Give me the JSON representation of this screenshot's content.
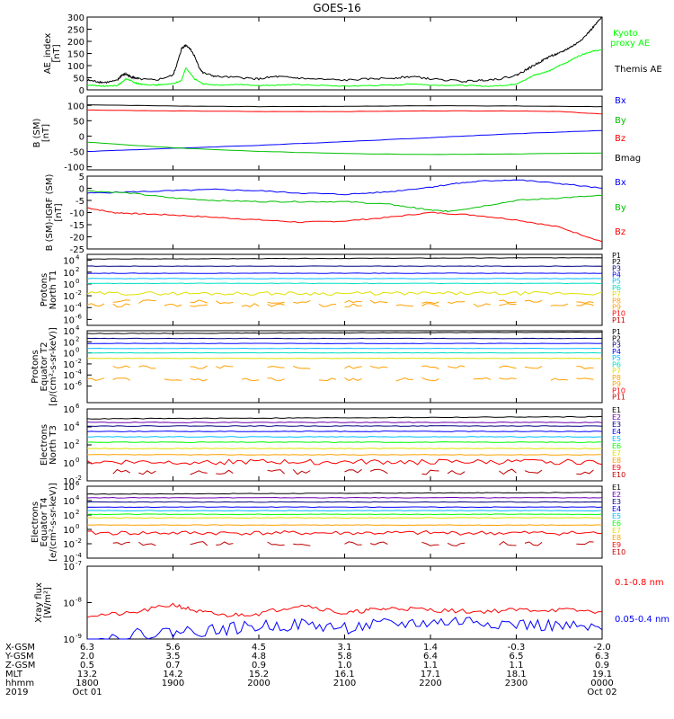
{
  "title": "GOES-16",
  "colors": {
    "black": "#000000",
    "green": "#00c000",
    "lime": "#00ff00",
    "blue": "#0000ff",
    "red": "#ff0000",
    "darkred": "#c00000",
    "navy": "#000080",
    "purple": "#6a00b0",
    "cyan": "#00c0ff",
    "teal": "#00e0c0",
    "yellow": "#e0e000",
    "orange": "#ffa000"
  },
  "chart_data": [
    {
      "type": "line",
      "ylabel": "AE_index [nT]",
      "ylim": [
        0,
        300
      ],
      "yticks": [
        "0",
        "50",
        "100",
        "150",
        "200",
        "250",
        "300"
      ],
      "series": [
        {
          "name": "Kyoto proxy AE",
          "color": "lime",
          "x": [
            0,
            0.1,
            0.2,
            0.35,
            0.4,
            0.45,
            0.5,
            0.55,
            0.6,
            0.65,
            0.8,
            0.85,
            1.0,
            1.1,
            1.15,
            1.25,
            1.35,
            1.5,
            1.8,
            2.0,
            2.2,
            2.4,
            2.6,
            3.0,
            3.3,
            3.6,
            3.8,
            4.0,
            4.4,
            4.7,
            4.9,
            5.0,
            5.1,
            5.2,
            5.3,
            5.4,
            5.5,
            5.6,
            5.7,
            5.8,
            5.9,
            6.0
          ],
          "values": [
            20,
            18,
            15,
            18,
            30,
            45,
            40,
            30,
            25,
            22,
            20,
            22,
            25,
            40,
            90,
            45,
            25,
            20,
            22,
            18,
            20,
            22,
            20,
            15,
            18,
            20,
            25,
            20,
            18,
            15,
            20,
            25,
            40,
            60,
            70,
            80,
            100,
            115,
            135,
            150,
            160,
            165
          ]
        },
        {
          "name": "Themis AE",
          "color": "black",
          "x": [
            0,
            0.1,
            0.2,
            0.35,
            0.4,
            0.45,
            0.5,
            0.55,
            0.6,
            0.8,
            1.0,
            1.05,
            1.1,
            1.15,
            1.2,
            1.25,
            1.3,
            1.35,
            1.5,
            1.8,
            2.0,
            2.2,
            2.4,
            2.6,
            3.0,
            3.3,
            3.6,
            3.8,
            4.0,
            4.4,
            4.6,
            4.8,
            5.0,
            5.1,
            5.2,
            5.3,
            5.4,
            5.5,
            5.6,
            5.7,
            5.8,
            5.9,
            6.0
          ],
          "values": [
            40,
            35,
            30,
            38,
            60,
            65,
            55,
            50,
            45,
            40,
            60,
            110,
            170,
            185,
            170,
            140,
            95,
            70,
            55,
            50,
            45,
            55,
            50,
            45,
            40,
            45,
            50,
            55,
            45,
            35,
            40,
            45,
            60,
            80,
            100,
            120,
            140,
            150,
            170,
            190,
            220,
            260,
            300
          ]
        }
      ]
    },
    {
      "type": "line",
      "ylabel": "B (SM) [nT]",
      "ylim": [
        -110,
        130
      ],
      "yticks": [
        "-100",
        "-50",
        "0",
        "50",
        "100"
      ],
      "ytick_values": [
        -100,
        -50,
        0,
        50,
        100
      ],
      "series": [
        {
          "name": "Bx",
          "color": "blue",
          "x": [
            0,
            1,
            2,
            3,
            4,
            5,
            6
          ],
          "values": [
            -50,
            -40,
            -30,
            -18,
            -5,
            8,
            18
          ]
        },
        {
          "name": "By",
          "color": "green",
          "x": [
            0,
            1,
            2,
            3,
            4,
            5,
            6
          ],
          "values": [
            -20,
            -38,
            -50,
            -57,
            -60,
            -58,
            -55
          ]
        },
        {
          "name": "Bz",
          "color": "red",
          "x": [
            0,
            1,
            2,
            3,
            4,
            5,
            5.5,
            6
          ],
          "values": [
            85,
            82,
            80,
            80,
            82,
            82,
            80,
            72
          ]
        },
        {
          "name": "Bmag",
          "color": "black",
          "x": [
            0,
            1,
            2,
            3,
            4,
            5,
            6
          ],
          "values": [
            102,
            98,
            96,
            97,
            99,
            98,
            96
          ]
        }
      ]
    },
    {
      "type": "line",
      "ylabel": "B (SM)-IGRF (SM) [nT]",
      "ylim": [
        -25,
        5
      ],
      "yticks": [
        "-25",
        "-20",
        "-15",
        "-10",
        "-5",
        "0",
        "5"
      ],
      "series": [
        {
          "name": "Bx",
          "color": "blue",
          "x": [
            0,
            0.5,
            1,
            1.5,
            2,
            2.5,
            3,
            3.5,
            4,
            4.3,
            4.6,
            5,
            5.5,
            6
          ],
          "values": [
            -2,
            -1.5,
            -1,
            -0.5,
            -1,
            -2,
            -2.5,
            -1.5,
            0.5,
            2,
            3,
            3.5,
            2,
            0
          ]
        },
        {
          "name": "By",
          "color": "green",
          "x": [
            0,
            0.5,
            1,
            1.5,
            2,
            2.5,
            3,
            3.5,
            3.8,
            4,
            4.2,
            4.5,
            5,
            5.5,
            6
          ],
          "values": [
            -1,
            -2,
            -4,
            -5,
            -5.5,
            -5.5,
            -5.5,
            -6.5,
            -8,
            -9,
            -9.5,
            -8,
            -5,
            -4,
            -3
          ]
        },
        {
          "name": "Bz",
          "color": "red",
          "x": [
            0,
            0.3,
            0.6,
            1,
            1.5,
            2,
            2.5,
            3,
            3.5,
            4,
            4.5,
            5,
            5.5,
            6
          ],
          "values": [
            -8,
            -10,
            -10.5,
            -11,
            -12,
            -13,
            -14,
            -13.5,
            -12,
            -10,
            -11,
            -13,
            -16,
            -22
          ]
        }
      ]
    },
    {
      "type": "line",
      "ylabel": "Protons North T1",
      "log": true,
      "ylim_exp": [
        -7,
        5
      ],
      "yticks": [
        "10",
        "10",
        "10",
        "10",
        "10",
        "10"
      ],
      "ytick_exps": [
        "4",
        "2",
        "0",
        "-2",
        "-4",
        "-6"
      ],
      "channels": [
        "P1",
        "P2",
        "P3",
        "P4",
        "P5",
        "P6",
        "P7",
        "P8",
        "P9",
        "P10",
        "P11"
      ],
      "channel_colors": [
        "black",
        "black",
        "navy",
        "blue",
        "cyan",
        "teal",
        "yellow",
        "orange",
        "orange",
        "red",
        "darkred"
      ],
      "levels_exp": [
        4.2,
        3,
        1.8,
        0.9,
        0.1,
        -1.6,
        -3.0,
        -3.6
      ]
    },
    {
      "type": "line",
      "ylabel": "Protons Equator T2 [p/(cm²-s-sr-keV)]",
      "log": true,
      "ylim_exp": [
        -9,
        4
      ],
      "yticks": [
        "10",
        "10",
        "10",
        "10",
        "10",
        "10"
      ],
      "ytick_exps": [
        "4",
        "2",
        "0",
        "-2",
        "-4",
        "-6"
      ],
      "channels": [
        "P1",
        "P2",
        "P3",
        "P4",
        "P5",
        "P6",
        "P7",
        "P8",
        "P9",
        "P10",
        "P11"
      ],
      "channel_colors": [
        "black",
        "black",
        "navy",
        "blue",
        "cyan",
        "teal",
        "yellow",
        "orange",
        "orange",
        "red",
        "darkred"
      ],
      "levels_exp": [
        3.5,
        2.6,
        1.7,
        0.8,
        0,
        -1,
        -2.6,
        -4.8
      ]
    },
    {
      "type": "line",
      "ylabel": "Electrons North T3",
      "log": true,
      "ylim_exp": [
        -2,
        6
      ],
      "yticks": [
        "10",
        "10",
        "10",
        "10",
        "10"
      ],
      "ytick_exps": [
        "6",
        "4",
        "2",
        "0",
        "-2"
      ],
      "channels": [
        "E1",
        "E2",
        "E3",
        "E4",
        "E5",
        "E6",
        "E7",
        "E8",
        "E9",
        "E10"
      ],
      "channel_colors": [
        "black",
        "purple",
        "navy",
        "blue",
        "cyan",
        "lime",
        "yellow",
        "orange",
        "red",
        "darkred"
      ],
      "levels_exp": [
        4.9,
        4.5,
        4.1,
        3.5,
        2.9,
        2.3,
        1.6,
        0.9,
        0.1,
        -1.0
      ]
    },
    {
      "type": "line",
      "ylabel": "Electrons Equator T4 [e/(cm²-s-sr-keV)]",
      "log": true,
      "ylim_exp": [
        -4,
        6
      ],
      "yticks": [
        "10",
        "10",
        "10",
        "10",
        "10",
        "10"
      ],
      "ytick_exps": [
        "6",
        "4",
        "2",
        "0",
        "-2",
        "-4"
      ],
      "channels": [
        "E1",
        "E2",
        "E3",
        "E4",
        "E5",
        "E6",
        "E7",
        "E8",
        "E9",
        "E10"
      ],
      "channel_colors": [
        "black",
        "purple",
        "navy",
        "blue",
        "cyan",
        "lime",
        "yellow",
        "orange",
        "red",
        "darkred"
      ],
      "levels_exp": [
        4.9,
        4.4,
        3.8,
        3.1,
        2.6,
        2.1,
        1.6,
        0.6,
        -0.5,
        -2
      ]
    },
    {
      "type": "line",
      "ylabel": "Xray flux [W/m²]",
      "log": true,
      "ylim_exp": [
        -9,
        -7
      ],
      "yticks": [
        "10",
        "10",
        "10"
      ],
      "ytick_exps": [
        "-7",
        "-8",
        "-9"
      ],
      "series": [
        {
          "name": "0.1-0.8 nm",
          "color": "red",
          "x": [
            0,
            0.5,
            1,
            1.3,
            1.6,
            2,
            2.5,
            3,
            3.3,
            3.6,
            4,
            4.5,
            5,
            5.5,
            6
          ],
          "values_exp": [
            -8.35,
            -8.3,
            -8.05,
            -8.25,
            -8.35,
            -8.3,
            -8.05,
            -8.3,
            -8.2,
            -8.15,
            -8.2,
            -8.25,
            -8.2,
            -8.2,
            -8.25
          ]
        },
        {
          "name": "0.05-0.4 nm",
          "color": "blue",
          "x": [
            0,
            0.5,
            1,
            1.5,
            2,
            2.5,
            3,
            3.5,
            4,
            4.5,
            5,
            5.5,
            6
          ],
          "values_exp": [
            -9.1,
            -8.9,
            -8.8,
            -8.75,
            -8.65,
            -8.6,
            -8.7,
            -8.6,
            -8.55,
            -8.5,
            -8.6,
            -8.65,
            -8.75
          ]
        }
      ]
    }
  ],
  "xaxis": {
    "row_labels": [
      "X-GSM",
      "Y-GSM",
      "Z-GSM",
      "MLT",
      "hhmm",
      "2019"
    ],
    "columns": [
      [
        "6.3",
        "2.0",
        "0.5",
        "13.2",
        "1800",
        "Oct 01"
      ],
      [
        "5.6",
        "3.5",
        "0.7",
        "14.2",
        "1900",
        ""
      ],
      [
        "4.5",
        "4.8",
        "0.9",
        "15.2",
        "2000",
        ""
      ],
      [
        "3.1",
        "5.8",
        "1.0",
        "16.1",
        "2100",
        ""
      ],
      [
        "1.4",
        "6.4",
        "1.1",
        "17.1",
        "2200",
        ""
      ],
      [
        "-0.3",
        "6.5",
        "1.1",
        "18.1",
        "2300",
        ""
      ],
      [
        "-2.0",
        "6.3",
        "0.9",
        "19.1",
        "0000",
        "Oct 02"
      ]
    ]
  }
}
